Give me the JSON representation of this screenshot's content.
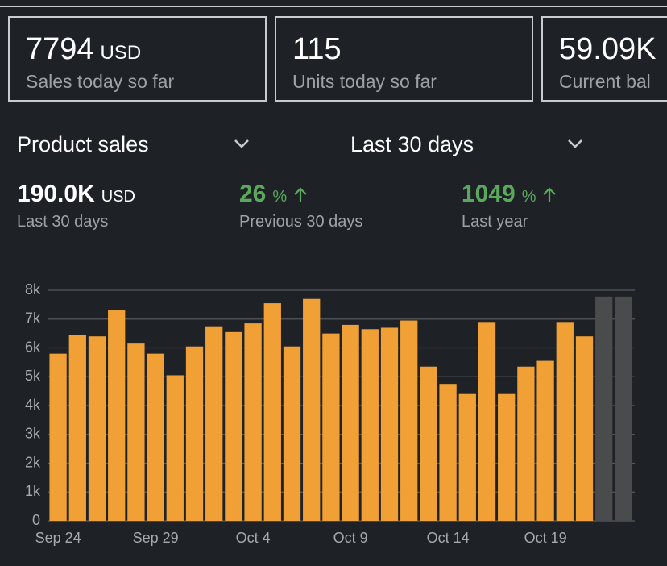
{
  "cards": [
    {
      "value": "7794",
      "unit": "USD",
      "label": "Sales today so far"
    },
    {
      "value": "115",
      "label": "Units today so far"
    },
    {
      "value": "59.09K",
      "label": "Current bal"
    }
  ],
  "selectors": [
    "Product sales",
    "Last 30 days"
  ],
  "stats": [
    {
      "value": "190.0K",
      "unit": "USD",
      "label": "Last 30 days"
    },
    {
      "value": "26",
      "unit": "%",
      "label": "Previous 30 days"
    },
    {
      "value": "1049",
      "unit": "%",
      "label": "Last year"
    }
  ],
  "chart_data": {
    "type": "bar",
    "categories": [
      "Sep 24",
      null,
      null,
      null,
      null,
      "Sep 29",
      null,
      null,
      null,
      null,
      "Oct 4",
      null,
      null,
      null,
      null,
      "Oct 9",
      null,
      null,
      null,
      null,
      "Oct 14",
      null,
      null,
      null,
      null,
      "Oct 19",
      null,
      null,
      null,
      null
    ],
    "values": [
      5800,
      6450,
      6400,
      7300,
      6150,
      5800,
      5050,
      6050,
      6750,
      6550,
      6850,
      7550,
      6050,
      7700,
      6500,
      6800,
      6650,
      6700,
      6950,
      5350,
      4750,
      4400,
      6900,
      4400,
      5350,
      5550,
      6900,
      6400,
      7780,
      7780
    ],
    "colors": [
      "#f0a035",
      "#f0a035",
      "#f0a035",
      "#f0a035",
      "#f0a035",
      "#f0a035",
      "#f0a035",
      "#f0a035",
      "#f0a035",
      "#f0a035",
      "#f0a035",
      "#f0a035",
      "#f0a035",
      "#f0a035",
      "#f0a035",
      "#f0a035",
      "#f0a035",
      "#f0a035",
      "#f0a035",
      "#f0a035",
      "#f0a035",
      "#f0a035",
      "#f0a035",
      "#f0a035",
      "#f0a035",
      "#f0a035",
      "#f0a035",
      "#f0a035",
      "#4a4b4d",
      "#4a4b4d"
    ],
    "ylim": [
      0,
      8000
    ],
    "yticks": [
      0,
      {
        "value": 1000,
        "label": "1k"
      },
      {
        "value": 2000,
        "label": "2k"
      },
      {
        "value": 3000,
        "label": "3k"
      },
      {
        "value": 4000,
        "label": "4k"
      },
      {
        "value": 5000,
        "label": "5k"
      },
      {
        "value": 6000,
        "label": "6k"
      },
      {
        "value": 7000,
        "label": "7k"
      },
      {
        "value": 8000,
        "label": "8k"
      }
    ],
    "grid": true
  }
}
